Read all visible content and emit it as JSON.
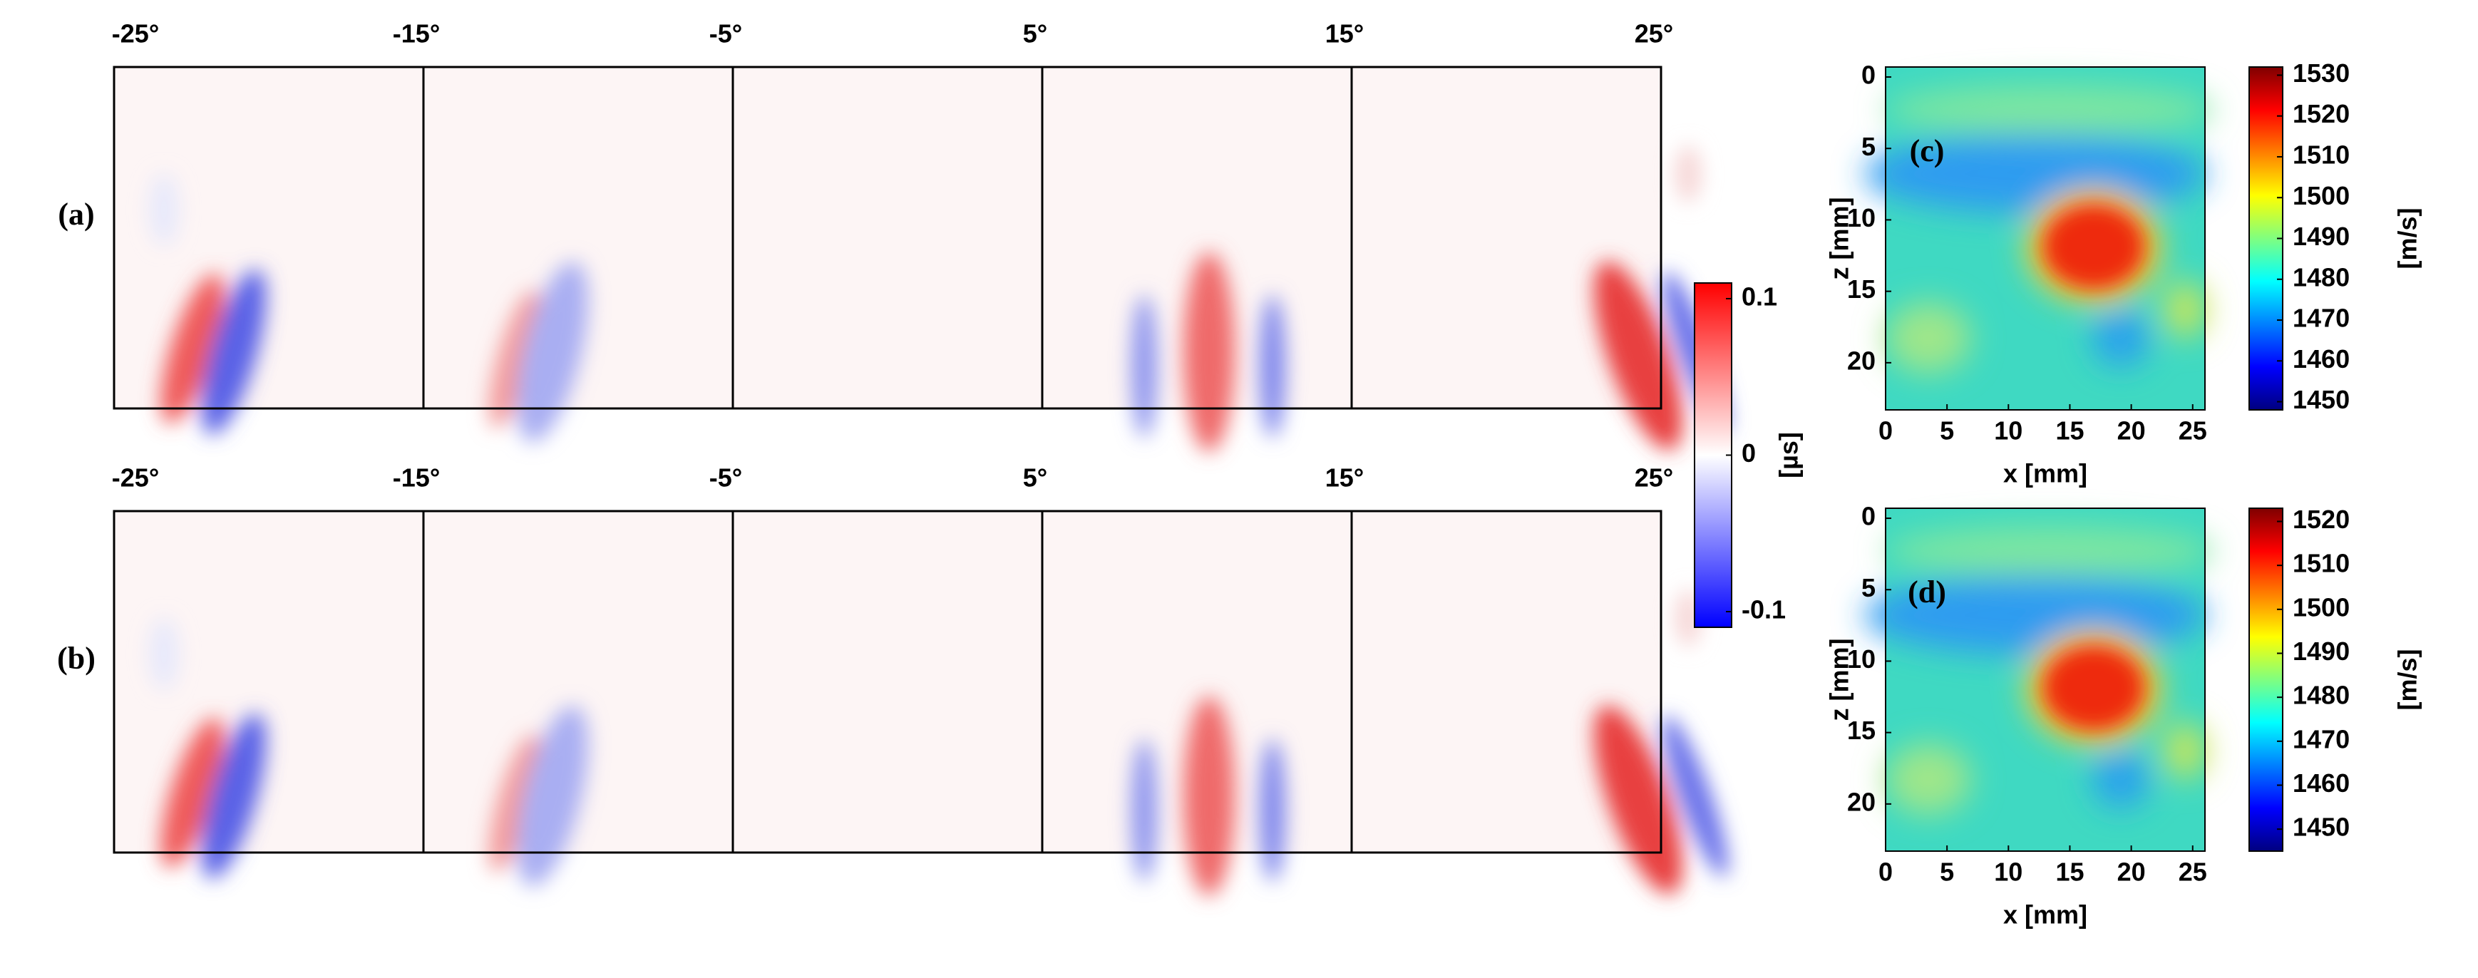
{
  "rows": [
    {
      "label": "(a)",
      "angles": [
        "-25°",
        "-15°",
        "-5°",
        "5°",
        "15°",
        "25°"
      ]
    },
    {
      "label": "(b)",
      "angles": [
        "-25°",
        "-15°",
        "-5°",
        "5°",
        "15°",
        "25°"
      ]
    }
  ],
  "delay_colorbar": {
    "label": "[µs]",
    "lim": [
      -0.11,
      0.11
    ],
    "ticks": [
      -0.1,
      0,
      0.1
    ]
  },
  "maps": [
    {
      "label": "(c)",
      "xlabel": "x [mm]",
      "ylabel": "z [mm]",
      "xlim": [
        0,
        26
      ],
      "xticks": [
        0,
        5,
        10,
        15,
        20,
        25
      ],
      "ylim": [
        -0.7,
        23.3
      ],
      "yticks": [
        0,
        5,
        10,
        15,
        20
      ],
      "colorbar": {
        "label": "[m/s]",
        "lim": [
          1448,
          1532
        ],
        "ticks": [
          1450,
          1460,
          1470,
          1480,
          1490,
          1500,
          1510,
          1520,
          1530
        ]
      }
    },
    {
      "label": "(d)",
      "xlabel": "x [mm]",
      "ylabel": "z [mm]",
      "xlim": [
        0,
        26
      ],
      "xticks": [
        0,
        5,
        10,
        15,
        20,
        25
      ],
      "ylim": [
        -0.7,
        23.3
      ],
      "yticks": [
        0,
        5,
        10,
        15,
        20
      ],
      "colorbar": {
        "label": "[m/s]",
        "lim": [
          1445,
          1523
        ],
        "ticks": [
          1450,
          1460,
          1470,
          1480,
          1490,
          1500,
          1510,
          1520
        ]
      }
    }
  ]
}
